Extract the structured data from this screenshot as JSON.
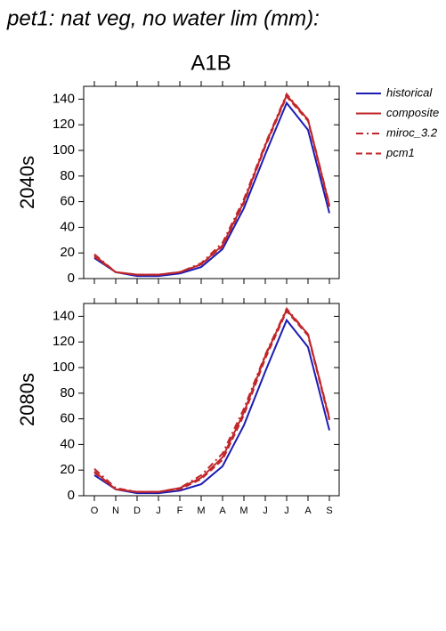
{
  "title": "pet1: nat veg, no water lim (mm):",
  "column_title": "A1B",
  "chart_data": [
    {
      "type": "line",
      "ylabel": "2040s",
      "ylim": [
        0,
        150
      ],
      "yticks": [
        0,
        20,
        40,
        60,
        80,
        100,
        120,
        140
      ],
      "series": [
        {
          "name": "historical",
          "color": "#1c1cb4",
          "dash": "solid",
          "values": [
            16,
            5,
            2,
            2,
            4,
            9,
            23,
            55,
            97,
            137,
            116,
            51
          ]
        },
        {
          "name": "composite",
          "color": "#c0262a",
          "dash": "solid",
          "values": [
            18,
            5,
            3,
            3,
            5,
            11,
            26,
            60,
            104,
            143,
            124,
            57
          ]
        },
        {
          "name": "miroc_3.2",
          "color": "#c0262a",
          "dash": "dashdot",
          "values": [
            19,
            5,
            3,
            3,
            5,
            12,
            28,
            62,
            105,
            144,
            124,
            58
          ]
        },
        {
          "name": "pcm1",
          "color": "#c0262a",
          "dash": "dash",
          "values": [
            17,
            5,
            3,
            3,
            5,
            11,
            25,
            59,
            103,
            142,
            123,
            56
          ]
        }
      ]
    },
    {
      "type": "line",
      "ylabel": "2080s",
      "ylim": [
        0,
        150
      ],
      "yticks": [
        0,
        20,
        40,
        60,
        80,
        100,
        120,
        140
      ],
      "categories": [
        "O",
        "N",
        "D",
        "J",
        "F",
        "M",
        "A",
        "M",
        "J",
        "J",
        "A",
        "S"
      ],
      "series": [
        {
          "color": "#1c1cb4",
          "dash": "solid",
          "values": [
            16,
            5,
            2,
            2,
            4,
            9,
            23,
            55,
            97,
            137,
            116,
            51
          ]
        },
        {
          "color": "#c0262a",
          "dash": "solid",
          "values": [
            19,
            5,
            3,
            3,
            6,
            14,
            30,
            65,
            109,
            145,
            126,
            60
          ]
        },
        {
          "color": "#c0262a",
          "dash": "dashdot",
          "values": [
            21,
            6,
            3,
            3,
            6,
            16,
            33,
            68,
            110,
            146,
            126,
            61
          ]
        },
        {
          "color": "#c0262a",
          "dash": "dash",
          "values": [
            18,
            5,
            3,
            3,
            5,
            13,
            28,
            63,
            107,
            144,
            125,
            59
          ]
        }
      ]
    }
  ]
}
